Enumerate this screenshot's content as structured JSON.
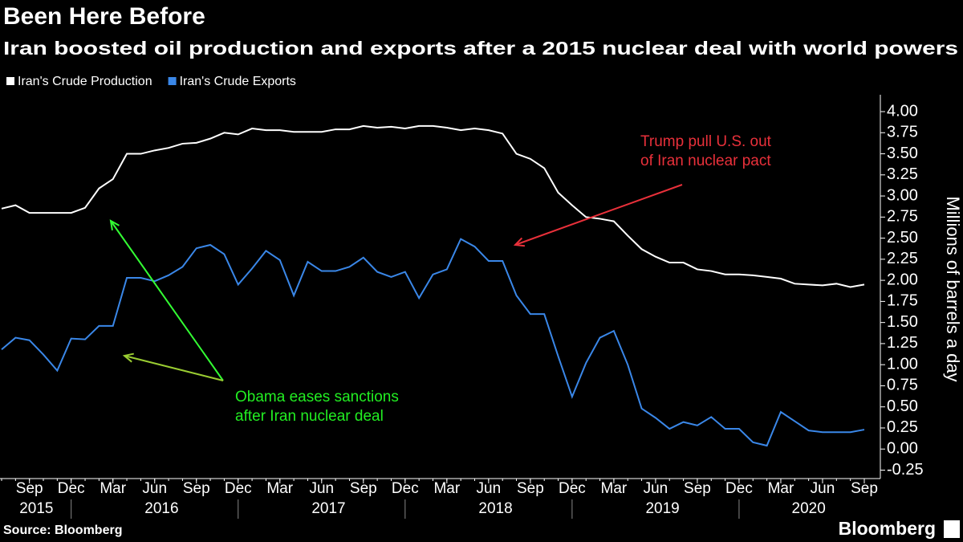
{
  "chart_data": {
    "type": "line",
    "title": "Been Here Before",
    "subtitle": "Iran boosted oil production and exports after a 2015 nuclear deal with world powers",
    "y_label": "Millions of barrels a day",
    "source": "Source: Bloomberg",
    "logo": "Bloomberg",
    "x": [
      "2015-07",
      "2015-08",
      "2015-09",
      "2015-10",
      "2015-11",
      "2015-12",
      "2016-01",
      "2016-02",
      "2016-03",
      "2016-04",
      "2016-05",
      "2016-06",
      "2016-07",
      "2016-08",
      "2016-09",
      "2016-10",
      "2016-11",
      "2016-12",
      "2017-01",
      "2017-02",
      "2017-03",
      "2017-04",
      "2017-05",
      "2017-06",
      "2017-07",
      "2017-08",
      "2017-09",
      "2017-10",
      "2017-11",
      "2017-12",
      "2018-01",
      "2018-02",
      "2018-03",
      "2018-04",
      "2018-05",
      "2018-06",
      "2018-07",
      "2018-08",
      "2018-09",
      "2018-10",
      "2018-11",
      "2018-12",
      "2019-01",
      "2019-02",
      "2019-03",
      "2019-04",
      "2019-05",
      "2019-06",
      "2019-07",
      "2019-08",
      "2019-09",
      "2019-10",
      "2019-11",
      "2019-12",
      "2020-01",
      "2020-02",
      "2020-03",
      "2020-04",
      "2020-05",
      "2020-06",
      "2020-07",
      "2020-08",
      "2020-09"
    ],
    "series": [
      {
        "name": "Iran's Crude Production",
        "color": "#ffffff",
        "values": [
          2.85,
          2.89,
          2.8,
          2.8,
          2.8,
          2.8,
          2.86,
          3.09,
          3.2,
          3.5,
          3.5,
          3.54,
          3.57,
          3.62,
          3.63,
          3.68,
          3.75,
          3.73,
          3.8,
          3.78,
          3.78,
          3.76,
          3.76,
          3.76,
          3.79,
          3.79,
          3.83,
          3.81,
          3.82,
          3.8,
          3.83,
          3.83,
          3.81,
          3.78,
          3.8,
          3.78,
          3.74,
          3.5,
          3.44,
          3.33,
          3.04,
          2.89,
          2.75,
          2.73,
          2.7,
          2.53,
          2.37,
          2.28,
          2.21,
          2.21,
          2.13,
          2.11,
          2.07,
          2.07,
          2.06,
          2.04,
          2.02,
          1.96,
          1.95,
          1.94,
          1.96,
          1.92,
          1.95
        ]
      },
      {
        "name": "Iran's Crude Exports",
        "color": "#3a87e8",
        "values": [
          1.18,
          1.32,
          1.29,
          1.12,
          0.93,
          1.31,
          1.3,
          1.46,
          1.46,
          2.03,
          2.03,
          1.99,
          2.06,
          2.16,
          2.38,
          2.42,
          2.31,
          1.95,
          2.14,
          2.35,
          2.24,
          1.82,
          2.22,
          2.11,
          2.11,
          2.16,
          2.27,
          2.1,
          2.04,
          2.1,
          1.79,
          2.07,
          2.13,
          2.49,
          2.4,
          2.23,
          2.23,
          1.82,
          1.6,
          1.6,
          1.1,
          0.62,
          1.02,
          1.32,
          1.4,
          1.0,
          0.48,
          0.37,
          0.24,
          0.32,
          0.28,
          0.38,
          0.24,
          0.24,
          0.08,
          0.04,
          0.44,
          0.33,
          0.22,
          0.2,
          0.2,
          0.2,
          0.23
        ]
      }
    ],
    "ylim": [
      -0.35,
      4.2
    ],
    "yticks": [
      {
        "value": 4,
        "label": "4.00"
      },
      3.75,
      {
        "value": 3.5,
        "label": "3.50"
      },
      3.25,
      {
        "value": 3,
        "label": "3.00"
      },
      2.75,
      {
        "value": 2.5,
        "label": "2.50"
      },
      2.25,
      {
        "value": 2,
        "label": "2.00"
      },
      1.75,
      {
        "value": 1.5,
        "label": "1.50"
      },
      1.25,
      {
        "value": 1,
        "label": "1.00"
      },
      0.75,
      {
        "value": 0.5,
        "label": "0.50"
      },
      0.25,
      {
        "value": 0,
        "label": "0.00"
      },
      -0.25
    ],
    "xticks": [
      {
        "value": "2015-09",
        "label": "Sep"
      },
      {
        "value": "2015-12",
        "label": "Dec"
      },
      {
        "value": "2016-03",
        "label": "Mar"
      },
      {
        "value": "2016-06",
        "label": "Jun"
      },
      {
        "value": "2016-09",
        "label": "Sep"
      },
      {
        "value": "2016-12",
        "label": "Dec"
      },
      {
        "value": "2017-03",
        "label": "Mar"
      },
      {
        "value": "2017-06",
        "label": "Jun"
      },
      {
        "value": "2017-09",
        "label": "Sep"
      },
      {
        "value": "2017-12",
        "label": "Dec"
      },
      {
        "value": "2018-03",
        "label": "Mar"
      },
      {
        "value": "2018-06",
        "label": "Jun"
      },
      {
        "value": "2018-09",
        "label": "Sep"
      },
      {
        "value": "2018-12",
        "label": "Dec"
      },
      {
        "value": "2019-03",
        "label": "Mar"
      },
      {
        "value": "2019-06",
        "label": "Jun"
      },
      {
        "value": "2019-09",
        "label": "Sep"
      },
      {
        "value": "2019-12",
        "label": "Dec"
      },
      {
        "value": "2020-03",
        "label": "Mar"
      },
      {
        "value": "2020-06",
        "label": "Jun"
      },
      {
        "value": "2020-09",
        "label": "Sep"
      }
    ],
    "year_labels": [
      2015,
      2016,
      2017,
      2018,
      2019,
      2020
    ],
    "legend": "top-left",
    "annotations": [
      {
        "text": [
          "Trump pull U.S. out",
          "of Iran nuclear pact"
        ],
        "color": "#e8303a",
        "arrow_colors": [
          "#e8303a"
        ]
      },
      {
        "text": [
          "Obama eases sanctions",
          "after Iran nuclear deal"
        ],
        "color": "#22ee22",
        "arrow_colors": [
          "#33ff33",
          "#9acd32"
        ]
      }
    ]
  }
}
